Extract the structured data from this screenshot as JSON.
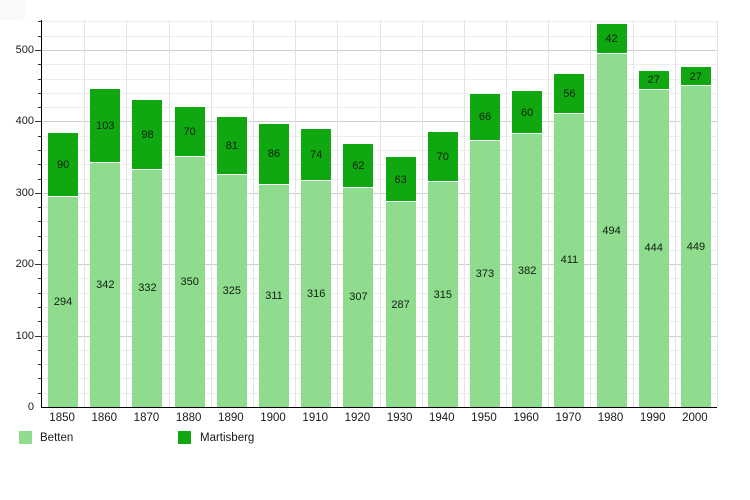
{
  "chart_data": {
    "type": "bar",
    "stacked": true,
    "title": "",
    "xlabel": "",
    "ylabel": "",
    "categories": [
      "1850",
      "1860",
      "1870",
      "1880",
      "1890",
      "1900",
      "1910",
      "1920",
      "1930",
      "1940",
      "1950",
      "1960",
      "1970",
      "1980",
      "1990",
      "2000"
    ],
    "series": [
      {
        "name": "Betten",
        "color": "#8FDC8F",
        "values": [
          294,
          342,
          332,
          350,
          325,
          311,
          316,
          307,
          287,
          315,
          373,
          382,
          411,
          494,
          444,
          449
        ]
      },
      {
        "name": "Martisberg",
        "color": "#10A810",
        "values": [
          90,
          103,
          98,
          70,
          81,
          86,
          74,
          62,
          63,
          70,
          66,
          60,
          56,
          42,
          27,
          27
        ]
      }
    ],
    "ylim": [
      0,
      542
    ],
    "yticks": [
      0,
      100,
      200,
      300,
      400,
      500
    ],
    "minor_grid_step": 20,
    "grid": true,
    "legend_position": "bottom"
  },
  "colors": {
    "background": "#ffffff",
    "axis": "#000000",
    "grid_minor": "#ededed",
    "grid_major": "#cfcfcf",
    "grid_vertical": "#e3e3e3",
    "label_text": "#1a1a1a"
  }
}
